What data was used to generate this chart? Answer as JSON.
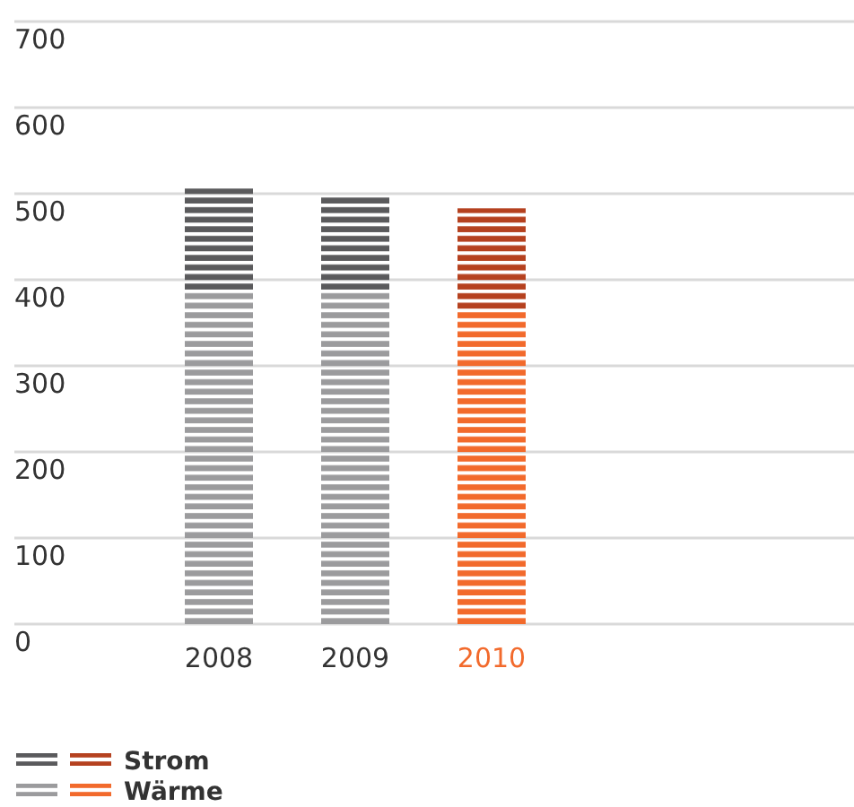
{
  "chart_data": {
    "type": "bar",
    "stacked": true,
    "categories": [
      "2008",
      "2009",
      "2010"
    ],
    "series": [
      {
        "name": "Wärme",
        "color": "#9b9b9d",
        "colors": [
          "#9b9b9d",
          "#9b9b9d",
          "#f26a2c"
        ],
        "values": [
          387,
          387,
          365
        ]
      },
      {
        "name": "Strom",
        "color": "#5a5a5c",
        "colors": [
          "#5a5a5c",
          "#5a5a5c",
          "#b5411f"
        ],
        "values": [
          119,
          109,
          118
        ]
      }
    ],
    "ylim": [
      0,
      700
    ],
    "yticks": [
      0,
      100,
      200,
      300,
      400,
      500,
      600,
      700
    ],
    "grid": "y",
    "legend": "bottom left"
  }
}
